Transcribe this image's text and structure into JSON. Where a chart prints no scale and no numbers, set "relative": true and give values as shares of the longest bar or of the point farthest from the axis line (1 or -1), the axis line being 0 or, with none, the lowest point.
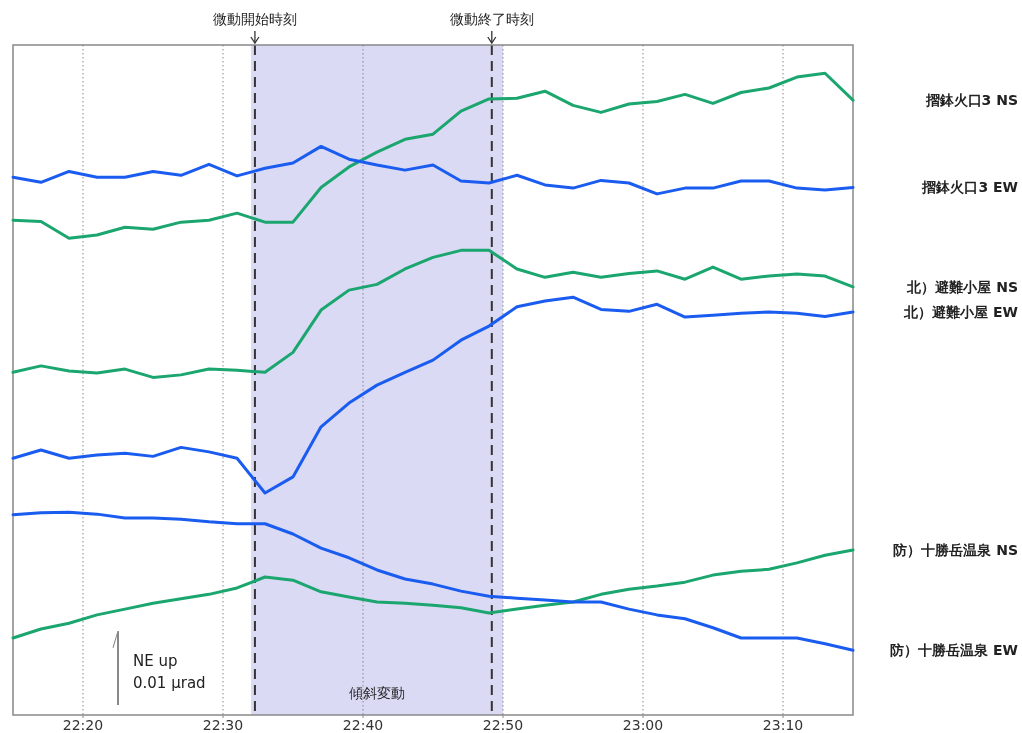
{
  "chart_data": {
    "type": "line",
    "relative": true,
    "xlim": [
      22.25,
      23.25
    ],
    "xticks": [
      {
        "value": 22.3333,
        "label": "22:20"
      },
      {
        "value": 22.5,
        "label": "22:30"
      },
      {
        "value": 22.6667,
        "label": "22:40"
      },
      {
        "value": 22.8333,
        "label": "22:50"
      },
      {
        "value": 23.0,
        "label": "23:00"
      },
      {
        "value": 23.1667,
        "label": "23:10"
      }
    ],
    "grid": "x",
    "legend": false,
    "x": [
      22.25,
      22.2833,
      22.3167,
      22.35,
      22.3833,
      22.4167,
      22.45,
      22.4833,
      22.5167,
      22.55,
      22.5833,
      22.6167,
      22.65,
      22.6833,
      22.7167,
      22.75,
      22.7833,
      22.8167,
      22.85,
      22.8833,
      22.9167,
      22.95,
      22.9833,
      23.0167,
      23.05,
      23.0833,
      23.1167,
      23.15,
      23.1833,
      23.2167,
      23.25
    ],
    "series": [
      {
        "name": "摺鉢火口3 NS",
        "color": "#1aa66e",
        "values": [
          0.771,
          0.769,
          0.743,
          0.748,
          0.76,
          0.757,
          0.768,
          0.771,
          0.782,
          0.768,
          0.768,
          0.822,
          0.854,
          0.877,
          0.897,
          0.905,
          0.941,
          0.96,
          0.961,
          0.972,
          0.95,
          0.939,
          0.952,
          0.956,
          0.967,
          0.953,
          0.97,
          0.977,
          0.994,
          1.0,
          0.958
        ]
      },
      {
        "name": "摺鉢火口3 EW",
        "color": "#1a5cf0",
        "values": [
          0.838,
          0.83,
          0.847,
          0.838,
          0.838,
          0.847,
          0.841,
          0.858,
          0.84,
          0.852,
          0.86,
          0.886,
          0.866,
          0.857,
          0.849,
          0.857,
          0.832,
          0.829,
          0.841,
          0.826,
          0.821,
          0.833,
          0.829,
          0.812,
          0.821,
          0.821,
          0.832,
          0.832,
          0.821,
          0.818,
          0.822
        ]
      },
      {
        "name": "北）避難小屋 NS",
        "color": "#1aa66e",
        "values": [
          0.534,
          0.544,
          0.536,
          0.533,
          0.539,
          0.526,
          0.53,
          0.539,
          0.537,
          0.534,
          0.565,
          0.631,
          0.662,
          0.671,
          0.695,
          0.713,
          0.724,
          0.724,
          0.695,
          0.682,
          0.69,
          0.682,
          0.688,
          0.692,
          0.679,
          0.698,
          0.679,
          0.684,
          0.687,
          0.684,
          0.667
        ]
      },
      {
        "name": "北）避難小屋 EW",
        "color": "#1a5cf0",
        "values": [
          0.4,
          0.413,
          0.4,
          0.405,
          0.408,
          0.403,
          0.417,
          0.41,
          0.4,
          0.346,
          0.371,
          0.449,
          0.486,
          0.514,
          0.534,
          0.553,
          0.584,
          0.606,
          0.636,
          0.645,
          0.651,
          0.632,
          0.629,
          0.64,
          0.62,
          0.623,
          0.626,
          0.628,
          0.626,
          0.621,
          0.628
        ]
      },
      {
        "name": "防）十勝岳温泉 NS",
        "color": "#1aa66e",
        "values": [
          0.12,
          0.134,
          0.143,
          0.156,
          0.165,
          0.174,
          0.181,
          0.188,
          0.198,
          0.215,
          0.21,
          0.192,
          0.184,
          0.176,
          0.174,
          0.171,
          0.167,
          0.159,
          0.165,
          0.171,
          0.176,
          0.188,
          0.196,
          0.201,
          0.207,
          0.218,
          0.224,
          0.227,
          0.237,
          0.249,
          0.257
        ]
      },
      {
        "name": "防）十勝岳温泉 EW",
        "color": "#1a5cf0",
        "values": [
          0.312,
          0.315,
          0.316,
          0.313,
          0.307,
          0.307,
          0.305,
          0.301,
          0.298,
          0.298,
          0.282,
          0.26,
          0.245,
          0.226,
          0.212,
          0.204,
          0.193,
          0.185,
          0.182,
          0.179,
          0.176,
          0.176,
          0.165,
          0.156,
          0.15,
          0.136,
          0.12,
          0.12,
          0.12,
          0.111,
          0.101
        ]
      }
    ],
    "ref_lines": [
      {
        "axis": "x",
        "value": 22.538,
        "label": "微動開始時刻",
        "line_style": "dashed"
      },
      {
        "axis": "x",
        "value": 22.82,
        "label": "微動終了時刻",
        "line_style": "dashed"
      }
    ],
    "bands": [
      {
        "axis": "x",
        "from": 22.5333,
        "to": 22.8333,
        "label": "傾斜変動",
        "color": "#dadaf5"
      }
    ],
    "annotations": [
      "NE up",
      "0.01 μrad"
    ]
  }
}
